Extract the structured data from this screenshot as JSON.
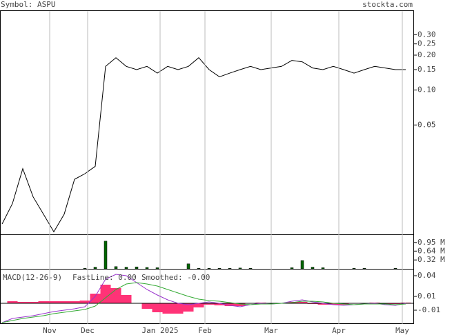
{
  "header": {
    "symbol": "Symbol: ASPU",
    "site": "stockta.com"
  },
  "chart_data": [
    {
      "type": "line",
      "log": true,
      "x": [
        0,
        3,
        6,
        9,
        12,
        15,
        18,
        21,
        24,
        27,
        30,
        33,
        36,
        39,
        42,
        45,
        48,
        51,
        54,
        57,
        60,
        63,
        66,
        69,
        72,
        75,
        78,
        81,
        84,
        87,
        90,
        93,
        96,
        99,
        102,
        105,
        108,
        111,
        114,
        117
      ],
      "series": [
        {
          "color": "#000000",
          "values": [
            0.007,
            0.0105,
            0.021,
            0.012,
            0.0085,
            0.006,
            0.0085,
            0.017,
            0.019,
            0.022,
            0.16,
            0.19,
            0.16,
            0.15,
            0.16,
            0.14,
            0.16,
            0.15,
            0.16,
            0.19,
            0.15,
            0.13,
            0.14,
            0.15,
            0.16,
            0.15,
            0.155,
            0.16,
            0.18,
            0.175,
            0.155,
            0.15,
            0.16,
            0.15,
            0.14,
            0.15,
            0.16,
            0.155,
            0.15,
            0.15
          ]
        }
      ],
      "xlim": [
        -0.6,
        119.4
      ],
      "ylim": [
        0.0057,
        0.48
      ],
      "yticks": [
        {
          "value": 0.3,
          "label": "0.30"
        },
        0.25,
        {
          "value": 0.2,
          "label": "0.20"
        },
        0.15,
        {
          "value": 0.1,
          "label": "0.10"
        },
        0.05
      ]
    },
    {
      "type": "bar",
      "x": [
        0,
        3,
        6,
        9,
        12,
        15,
        18,
        21,
        24,
        27,
        30,
        33,
        36,
        39,
        42,
        45,
        48,
        51,
        54,
        57,
        60,
        63,
        66,
        69,
        72,
        75,
        78,
        81,
        84,
        87,
        90,
        93,
        96,
        99,
        102,
        105,
        108,
        111,
        114,
        117
      ],
      "series": [
        {
          "color": "#006600",
          "values": [
            0,
            0,
            0,
            0,
            0,
            0,
            0,
            0,
            20000,
            60000,
            1000000,
            80000,
            60000,
            70000,
            50000,
            40000,
            0,
            0,
            180000,
            20000,
            20000,
            20000,
            20000,
            30000,
            20000,
            0,
            0,
            0,
            40000,
            300000,
            60000,
            40000,
            0,
            0,
            20000,
            20000,
            0,
            0,
            20000,
            0
          ]
        }
      ],
      "xlim": [
        -0.6,
        119.4
      ],
      "ylim": [
        0,
        1220000
      ],
      "yticks": [
        {
          "value": 950000,
          "label": "0.95 M"
        },
        {
          "value": 640000,
          "label": "0.64 M"
        },
        {
          "value": 320000,
          "label": "0.32 M"
        }
      ]
    },
    {
      "type": "macd",
      "title": "MACD(12-26-9)",
      "x": [
        0,
        3,
        6,
        9,
        12,
        15,
        18,
        21,
        24,
        27,
        30,
        33,
        36,
        39,
        42,
        45,
        48,
        51,
        54,
        57,
        60,
        63,
        66,
        69,
        72,
        75,
        78,
        81,
        84,
        87,
        90,
        93,
        96,
        99,
        102,
        105,
        108,
        111,
        114,
        117
      ],
      "series": [
        {
          "name": "FastLine: 0.00",
          "color": "#9933cc",
          "values": [
            -0.028,
            -0.022,
            -0.02,
            -0.018,
            -0.015,
            -0.012,
            -0.01,
            -0.008,
            -0.005,
            0.01,
            0.035,
            0.042,
            0.04,
            0.03,
            0.02,
            0.012,
            0.005,
            0.0,
            -0.002,
            0.0,
            0.002,
            0.0,
            -0.003,
            -0.005,
            -0.002,
            0.0,
            -0.001,
            0.0,
            0.003,
            0.005,
            0.002,
            0.0,
            -0.002,
            -0.003,
            -0.002,
            -0.001,
            0.0,
            -0.002,
            -0.003,
            0.0
          ]
        },
        {
          "name": "Smoothed: -0.00",
          "color": "#33aa33",
          "values": [
            -0.028,
            -0.025,
            -0.022,
            -0.02,
            -0.018,
            -0.015,
            -0.013,
            -0.011,
            -0.009,
            -0.004,
            0.008,
            0.02,
            0.028,
            0.03,
            0.028,
            0.025,
            0.02,
            0.015,
            0.01,
            0.006,
            0.004,
            0.003,
            0.001,
            -0.001,
            -0.002,
            -0.001,
            -0.001,
            0.0,
            0.001,
            0.003,
            0.003,
            0.002,
            0.0,
            -0.001,
            -0.002,
            -0.001,
            -0.001,
            -0.001,
            -0.002,
            -0.001
          ]
        }
      ],
      "histogram": {
        "color": "#ff3377",
        "values": [
          0,
          0.003,
          0.002,
          0.002,
          0.003,
          0.003,
          0.003,
          0.003,
          0.004,
          0.014,
          0.027,
          0.022,
          0.012,
          0,
          -0.008,
          -0.013,
          -0.015,
          -0.015,
          -0.012,
          -0.006,
          -0.002,
          -0.003,
          -0.004,
          -0.004,
          0,
          0.001,
          0,
          0,
          0.002,
          0.002,
          -0.001,
          -0.002,
          -0.002,
          -0.002,
          0,
          0,
          0.001,
          -0.001,
          -0.001,
          0.001
        ]
      },
      "xlim": [
        -0.6,
        119.4
      ],
      "ylim": [
        -0.03,
        0.048
      ],
      "yticks": [
        0.04,
        0.01,
        -0.01
      ],
      "xticks": [
        {
          "value": 13.8,
          "label": "Nov"
        },
        {
          "value": 24.8,
          "label": "Dec"
        },
        {
          "value": 45.8,
          "label": "Jan 2025"
        },
        {
          "value": 58.8,
          "label": "Feb"
        },
        {
          "value": 78,
          "label": "Mar"
        },
        {
          "value": 97.6,
          "label": "Apr"
        },
        {
          "value": 116,
          "label": "May"
        }
      ]
    }
  ]
}
